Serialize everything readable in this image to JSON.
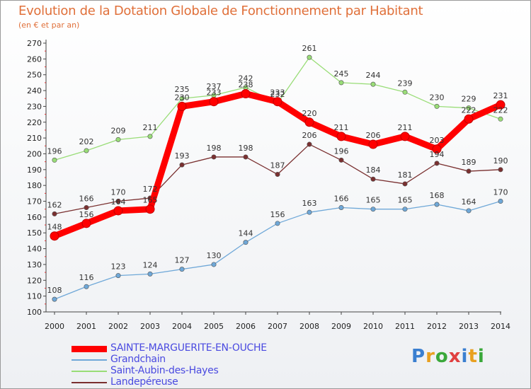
{
  "title": "Evolution de la Dotation Globale de Fonctionnement par Habitant",
  "subtitle": "(en € et par an)",
  "logo": {
    "text": "Proxiti",
    "colors": [
      "#3a7fd0",
      "#e8a020",
      "#3aa83a",
      "#e04040",
      "#3a7fd0",
      "#e8a020",
      "#3aa83a"
    ]
  },
  "chart_data": {
    "type": "line",
    "title": "Evolution de la Dotation Globale de Fonctionnement par Habitant",
    "subtitle": "(en € et par an)",
    "x": [
      "2000",
      "2001",
      "2002",
      "2003",
      "2004",
      "2005",
      "2006",
      "2007",
      "2008",
      "2009",
      "2010",
      "2011",
      "2012",
      "2013",
      "2014"
    ],
    "ylim": [
      100,
      270
    ],
    "yticks": [
      100,
      110,
      120,
      130,
      140,
      150,
      160,
      170,
      180,
      190,
      200,
      210,
      220,
      230,
      240,
      250,
      260,
      270
    ],
    "grid": false,
    "legend_position": "bottom-left",
    "series": [
      {
        "name": "SAINTE-MARGUERITE-EN-OUCHE",
        "color": "#ff0000",
        "values": [
          148,
          156,
          164,
          165,
          230,
          233,
          238,
          233,
          220,
          211,
          206,
          211,
          203,
          222,
          231
        ]
      },
      {
        "name": "Grandchain",
        "color": "#6fa8d8",
        "values": [
          108,
          116,
          123,
          124,
          127,
          130,
          144,
          156,
          163,
          166,
          165,
          165,
          168,
          164,
          170
        ]
      },
      {
        "name": "Saint-Aubin-des-Hayes",
        "color": "#99dd77",
        "values": [
          196,
          202,
          209,
          211,
          235,
          237,
          242,
          232,
          261,
          245,
          244,
          239,
          230,
          229,
          222
        ]
      },
      {
        "name": "Landepéreuse",
        "color": "#7a3030",
        "values": [
          162,
          166,
          170,
          172,
          193,
          198,
          198,
          187,
          206,
          196,
          184,
          181,
          194,
          189,
          190
        ]
      }
    ]
  }
}
